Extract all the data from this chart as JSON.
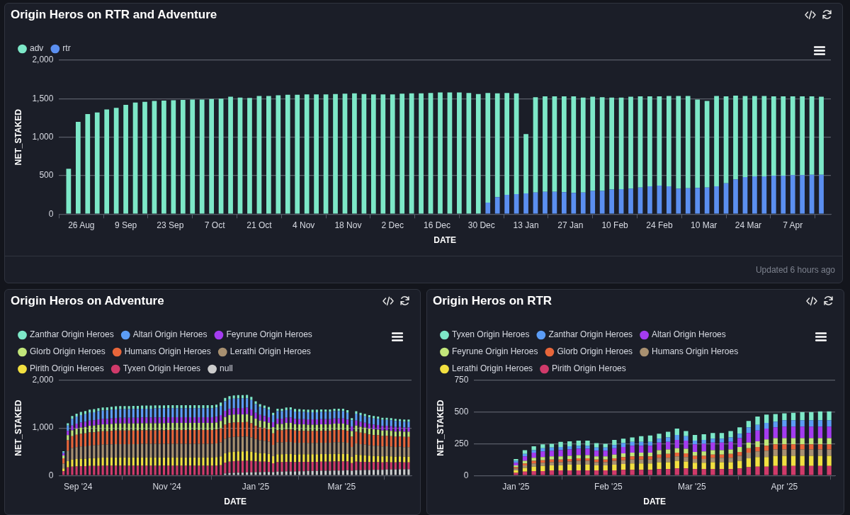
{
  "chart_data": [
    {
      "type": "bar",
      "title": "Origin Heros on RTR and Adventure",
      "xlabel": "DATE",
      "ylabel": "NET_STAKED",
      "stacked": true,
      "grid": "y",
      "legend": "top left",
      "annotations": [
        "Updated 6 hours ago"
      ],
      "xlim": [
        "2024-08-19",
        "2025-04-19"
      ],
      "xticks": [
        {
          "value": "2024-08-26",
          "label": "26 Aug"
        },
        {
          "value": "2024-09-09",
          "label": "9 Sep"
        },
        {
          "value": "2024-09-23",
          "label": "23 Sep"
        },
        {
          "value": "2024-10-07",
          "label": "7 Oct"
        },
        {
          "value": "2024-10-21",
          "label": "21 Oct"
        },
        {
          "value": "2024-11-04",
          "label": "4 Nov"
        },
        {
          "value": "2024-11-18",
          "label": "18 Nov"
        },
        {
          "value": "2024-12-02",
          "label": "2 Dec"
        },
        {
          "value": "2024-12-16",
          "label": "16 Dec"
        },
        {
          "value": "2024-12-30",
          "label": "30 Dec"
        },
        {
          "value": "2025-01-13",
          "label": "13 Jan"
        },
        {
          "value": "2025-01-27",
          "label": "27 Jan"
        },
        {
          "value": "2025-02-10",
          "label": "10 Feb"
        },
        {
          "value": "2025-02-24",
          "label": "24 Feb"
        },
        {
          "value": "2025-03-10",
          "label": "10 Mar"
        },
        {
          "value": "2025-03-24",
          "label": "24 Mar"
        },
        {
          "value": "2025-04-07",
          "label": "7 Apr"
        }
      ],
      "ylim": [
        0,
        2000
      ],
      "yticks": [
        0,
        500,
        {
          "value": 1000,
          "label": "1,000"
        },
        {
          "value": 1500,
          "label": "1,500"
        },
        {
          "value": 2000,
          "label": "2,000"
        }
      ],
      "x": [
        "2024-08-22",
        "2024-08-25",
        "2024-08-28",
        "2024-08-31",
        "2024-09-03",
        "2024-09-06",
        "2024-09-09",
        "2024-09-12",
        "2024-09-15",
        "2024-09-18",
        "2024-09-21",
        "2024-09-24",
        "2024-09-27",
        "2024-09-30",
        "2024-10-03",
        "2024-10-06",
        "2024-10-09",
        "2024-10-12",
        "2024-10-15",
        "2024-10-18",
        "2024-10-21",
        "2024-10-24",
        "2024-10-27",
        "2024-10-30",
        "2024-11-02",
        "2024-11-05",
        "2024-11-08",
        "2024-11-11",
        "2024-11-14",
        "2024-11-17",
        "2024-11-20",
        "2024-11-23",
        "2024-11-26",
        "2024-11-29",
        "2024-12-02",
        "2024-12-05",
        "2024-12-08",
        "2024-12-11",
        "2024-12-14",
        "2024-12-17",
        "2024-12-20",
        "2024-12-23",
        "2024-12-26",
        "2024-12-29",
        "2025-01-01",
        "2025-01-04",
        "2025-01-07",
        "2025-01-10",
        "2025-01-13",
        "2025-01-16",
        "2025-01-19",
        "2025-01-22",
        "2025-01-25",
        "2025-01-28",
        "2025-01-31",
        "2025-02-03",
        "2025-02-06",
        "2025-02-09",
        "2025-02-12",
        "2025-02-15",
        "2025-02-18",
        "2025-02-21",
        "2025-02-24",
        "2025-02-27",
        "2025-03-02",
        "2025-03-05",
        "2025-03-08",
        "2025-03-11",
        "2025-03-14",
        "2025-03-17",
        "2025-03-20",
        "2025-03-23",
        "2025-03-26",
        "2025-03-29",
        "2025-04-01",
        "2025-04-04",
        "2025-04-07",
        "2025-04-10",
        "2025-04-13",
        "2025-04-16"
      ],
      "series": [
        {
          "name": "rtr",
          "color": "#5b8ff0",
          "values": [
            null,
            null,
            null,
            null,
            null,
            null,
            null,
            null,
            null,
            null,
            null,
            null,
            null,
            null,
            null,
            null,
            null,
            null,
            null,
            null,
            null,
            null,
            null,
            null,
            null,
            null,
            null,
            null,
            null,
            null,
            null,
            null,
            null,
            null,
            null,
            null,
            null,
            null,
            null,
            null,
            null,
            null,
            null,
            null,
            150,
            220,
            250,
            260,
            270,
            280,
            290,
            290,
            285,
            275,
            280,
            300,
            300,
            320,
            325,
            330,
            345,
            360,
            370,
            360,
            330,
            335,
            340,
            345,
            360,
            400,
            450,
            480,
            490,
            490,
            500,
            500,
            505,
            505,
            510,
            510
          ]
        },
        {
          "name": "adv",
          "color": "#7de8c8",
          "values": [
            590,
            1200,
            1300,
            1320,
            1360,
            1380,
            1420,
            1450,
            1460,
            1470,
            1475,
            1480,
            1485,
            1490,
            1490,
            1495,
            1500,
            1525,
            1515,
            1510,
            1535,
            1535,
            1545,
            1550,
            1550,
            1555,
            1555,
            1555,
            1560,
            1565,
            1570,
            1560,
            1555,
            1555,
            1555,
            1565,
            1570,
            1570,
            1575,
            1580,
            1580,
            1580,
            1575,
            1560,
            1425,
            1350,
            1325,
            1310,
            770,
            1240,
            1240,
            1240,
            1245,
            1255,
            1235,
            1225,
            1220,
            1195,
            1190,
            1195,
            1185,
            1170,
            1160,
            1175,
            1205,
            1200,
            1150,
            1125,
            1175,
            1130,
            1090,
            1055,
            1045,
            1045,
            1030,
            1030,
            1025,
            1025,
            1020,
            1015
          ]
        }
      ]
    },
    {
      "type": "bar",
      "title": "Origin Heros on Adventure",
      "xlabel": "DATE",
      "ylabel": "NET_STAKED",
      "stacked": true,
      "grid": "y",
      "legend": "top left",
      "xlim": [
        "2024-08-19",
        "2025-04-18"
      ],
      "xticks": [
        {
          "value": "2024-09-01",
          "label": "Sep '24"
        },
        {
          "value": "2024-11-01",
          "label": "Nov '24"
        },
        {
          "value": "2025-01-01",
          "label": "Jan '25"
        },
        {
          "value": "2025-03-01",
          "label": "Mar '25"
        }
      ],
      "ylim": [
        0,
        2000
      ],
      "yticks": [
        0,
        {
          "value": 1000,
          "label": "1,000"
        },
        {
          "value": 2000,
          "label": "2,000"
        }
      ],
      "x": [
        "2024-08-22",
        "2024-08-25",
        "2024-08-28",
        "2024-08-31",
        "2024-09-03",
        "2024-09-06",
        "2024-09-09",
        "2024-09-12",
        "2024-09-15",
        "2024-09-18",
        "2024-09-21",
        "2024-09-24",
        "2024-09-27",
        "2024-09-30",
        "2024-10-03",
        "2024-10-06",
        "2024-10-09",
        "2024-10-12",
        "2024-10-15",
        "2024-10-18",
        "2024-10-21",
        "2024-10-24",
        "2024-10-27",
        "2024-10-30",
        "2024-11-02",
        "2024-11-05",
        "2024-11-08",
        "2024-11-11",
        "2024-11-14",
        "2024-11-17",
        "2024-11-20",
        "2024-11-23",
        "2024-11-26",
        "2024-11-29",
        "2024-12-02",
        "2024-12-05",
        "2024-12-08",
        "2024-12-11",
        "2024-12-14",
        "2024-12-17",
        "2024-12-20",
        "2024-12-23",
        "2024-12-26",
        "2024-12-29",
        "2025-01-01",
        "2025-01-04",
        "2025-01-07",
        "2025-01-10",
        "2025-01-13",
        "2025-01-16",
        "2025-01-19",
        "2025-01-22",
        "2025-01-25",
        "2025-01-28",
        "2025-01-31",
        "2025-02-03",
        "2025-02-06",
        "2025-02-09",
        "2025-02-12",
        "2025-02-15",
        "2025-02-18",
        "2025-02-21",
        "2025-02-24",
        "2025-02-27",
        "2025-03-02",
        "2025-03-05",
        "2025-03-08",
        "2025-03-11",
        "2025-03-14",
        "2025-03-17",
        "2025-03-20",
        "2025-03-23",
        "2025-03-26",
        "2025-03-29",
        "2025-04-01",
        "2025-04-04",
        "2025-04-07",
        "2025-04-10",
        "2025-04-13",
        "2025-04-16"
      ],
      "series": [
        {
          "name": "null",
          "color": "#cccccc",
          "values": [
            null,
            null,
            null,
            null,
            null,
            null,
            null,
            null,
            null,
            null,
            null,
            null,
            null,
            null,
            null,
            null,
            null,
            null,
            null,
            null,
            null,
            null,
            null,
            null,
            null,
            null,
            null,
            null,
            null,
            null,
            null,
            null,
            null,
            null,
            null,
            null,
            null,
            40,
            50,
            55,
            60,
            60,
            65,
            65,
            70,
            70,
            75,
            75,
            70,
            80,
            80,
            85,
            85,
            85,
            90,
            90,
            95,
            95,
            95,
            100,
            100,
            100,
            105,
            105,
            105,
            110,
            100,
            110,
            110,
            115,
            115,
            120,
            120,
            120,
            125,
            125,
            125,
            130,
            130,
            130
          ]
        },
        {
          "name": "Tyxen Origin Heroes",
          "color": "#d03a6a",
          "values": [
            90,
            170,
            185,
            190,
            195,
            195,
            200,
            200,
            200,
            205,
            205,
            205,
            205,
            205,
            205,
            205,
            205,
            205,
            205,
            205,
            205,
            205,
            205,
            205,
            205,
            205,
            205,
            205,
            205,
            205,
            205,
            205,
            205,
            205,
            205,
            205,
            215,
            230,
            240,
            245,
            245,
            245,
            245,
            240,
            230,
            220,
            215,
            210,
            185,
            200,
            200,
            200,
            200,
            195,
            195,
            195,
            190,
            190,
            190,
            190,
            190,
            190,
            190,
            190,
            190,
            185,
            160,
            180,
            175,
            170,
            165,
            160,
            160,
            155,
            155,
            150,
            150,
            150,
            145,
            145
          ]
        },
        {
          "name": "Pirith Origin Heroes",
          "color": "#f2e040",
          "values": [
            60,
            130,
            150,
            155,
            160,
            160,
            165,
            165,
            170,
            170,
            170,
            170,
            175,
            175,
            175,
            175,
            175,
            175,
            175,
            175,
            175,
            175,
            175,
            175,
            175,
            175,
            175,
            175,
            175,
            175,
            175,
            175,
            175,
            175,
            175,
            180,
            185,
            195,
            200,
            200,
            200,
            200,
            200,
            195,
            185,
            180,
            175,
            170,
            150,
            165,
            165,
            165,
            165,
            160,
            160,
            160,
            160,
            160,
            160,
            160,
            160,
            160,
            160,
            160,
            160,
            155,
            130,
            150,
            145,
            140,
            135,
            130,
            130,
            125,
            125,
            125,
            120,
            120,
            120,
            120
          ]
        },
        {
          "name": "Lerathi Origin Heroes",
          "color": "#a89070",
          "values": [
            100,
            220,
            240,
            250,
            255,
            260,
            265,
            270,
            270,
            275,
            275,
            280,
            280,
            280,
            280,
            280,
            280,
            280,
            285,
            285,
            285,
            285,
            285,
            285,
            285,
            285,
            285,
            285,
            285,
            285,
            285,
            285,
            285,
            285,
            285,
            290,
            295,
            305,
            310,
            310,
            310,
            310,
            310,
            300,
            280,
            270,
            265,
            255,
            240,
            250,
            250,
            255,
            255,
            250,
            245,
            245,
            240,
            240,
            240,
            240,
            240,
            240,
            245,
            245,
            245,
            240,
            210,
            235,
            230,
            225,
            220,
            215,
            215,
            210,
            210,
            205,
            205,
            205,
            200,
            200
          ]
        },
        {
          "name": "Humans Origin Heroes",
          "color": "#e8663a",
          "values": [
            110,
            220,
            250,
            260,
            265,
            270,
            275,
            275,
            280,
            280,
            280,
            285,
            285,
            285,
            285,
            285,
            285,
            285,
            285,
            285,
            285,
            285,
            285,
            285,
            290,
            290,
            290,
            290,
            290,
            290,
            290,
            290,
            290,
            290,
            290,
            290,
            295,
            300,
            305,
            305,
            305,
            305,
            305,
            300,
            280,
            270,
            265,
            260,
            240,
            255,
            255,
            260,
            260,
            255,
            250,
            250,
            250,
            250,
            250,
            250,
            250,
            250,
            255,
            255,
            255,
            250,
            220,
            245,
            240,
            235,
            230,
            225,
            225,
            220,
            220,
            220,
            215,
            215,
            215,
            215
          ]
        },
        {
          "name": "Glorb Origin Heroes",
          "color": "#c2e67a",
          "values": [
            60,
            110,
            125,
            130,
            135,
            135,
            140,
            140,
            145,
            145,
            145,
            145,
            150,
            150,
            150,
            150,
            150,
            150,
            150,
            150,
            150,
            150,
            150,
            150,
            150,
            150,
            150,
            150,
            150,
            150,
            150,
            150,
            150,
            150,
            150,
            150,
            155,
            160,
            165,
            165,
            165,
            165,
            165,
            160,
            150,
            145,
            140,
            140,
            130,
            135,
            135,
            140,
            140,
            135,
            135,
            135,
            135,
            135,
            135,
            135,
            135,
            135,
            135,
            135,
            135,
            130,
            115,
            130,
            125,
            125,
            120,
            120,
            115,
            115,
            115,
            115,
            110,
            110,
            110,
            110
          ]
        },
        {
          "name": "Feyrune Origin Heroes",
          "color": "#a43cf0",
          "values": [
            40,
            90,
            100,
            105,
            105,
            110,
            110,
            110,
            115,
            115,
            115,
            115,
            115,
            120,
            120,
            120,
            120,
            120,
            120,
            120,
            120,
            120,
            120,
            120,
            120,
            120,
            120,
            120,
            120,
            120,
            120,
            120,
            120,
            120,
            120,
            120,
            125,
            130,
            130,
            135,
            135,
            135,
            135,
            130,
            125,
            120,
            115,
            115,
            105,
            110,
            110,
            110,
            115,
            110,
            110,
            110,
            110,
            110,
            110,
            110,
            110,
            110,
            110,
            110,
            110,
            105,
            95,
            105,
            105,
            100,
            100,
            100,
            95,
            95,
            95,
            95,
            95,
            90,
            90,
            90
          ]
        },
        {
          "name": "Altari Origin Heroes",
          "color": "#5b9cf5",
          "values": [
            30,
            110,
            140,
            150,
            155,
            160,
            165,
            170,
            170,
            175,
            180,
            180,
            180,
            180,
            180,
            180,
            185,
            185,
            185,
            185,
            185,
            190,
            190,
            190,
            190,
            190,
            190,
            190,
            190,
            190,
            190,
            190,
            190,
            190,
            190,
            190,
            195,
            200,
            200,
            200,
            200,
            200,
            200,
            195,
            180,
            170,
            165,
            160,
            150,
            155,
            155,
            160,
            160,
            155,
            155,
            150,
            150,
            150,
            150,
            150,
            150,
            150,
            150,
            150,
            150,
            145,
            130,
            145,
            140,
            135,
            135,
            130,
            130,
            130,
            125,
            125,
            125,
            120,
            120,
            120
          ]
        },
        {
          "name": "Zanthar Origin Heroes",
          "color": "#7de8c8",
          "values": [
            20,
            50,
            60,
            60,
            65,
            65,
            65,
            65,
            65,
            65,
            65,
            65,
            65,
            65,
            65,
            65,
            65,
            65,
            65,
            65,
            65,
            65,
            65,
            65,
            65,
            65,
            65,
            65,
            65,
            65,
            65,
            65,
            65,
            65,
            65,
            65,
            70,
            70,
            70,
            70,
            70,
            70,
            70,
            70,
            60,
            55,
            55,
            55,
            50,
            55,
            55,
            55,
            55,
            55,
            55,
            55,
            55,
            55,
            55,
            55,
            55,
            55,
            55,
            55,
            55,
            55,
            45,
            50,
            50,
            50,
            50,
            50,
            50,
            45,
            45,
            45,
            45,
            45,
            45,
            45
          ]
        }
      ]
    },
    {
      "type": "bar",
      "title": "Origin Heros on RTR",
      "xlabel": "DATE",
      "ylabel": "NET_STAKED",
      "stacked": true,
      "grid": "y",
      "legend": "top left",
      "xlim": [
        "2024-12-18",
        "2025-04-18"
      ],
      "xticks": [
        {
          "value": "2025-01-01",
          "label": "Jan '25"
        },
        {
          "value": "2025-02-01",
          "label": "Feb '25"
        },
        {
          "value": "2025-03-01",
          "label": "Mar '25"
        },
        {
          "value": "2025-04-01",
          "label": "Apr '25"
        }
      ],
      "ylim": [
        0,
        750
      ],
      "yticks": [
        0,
        250,
        500,
        750
      ],
      "x": [
        "2025-01-01",
        "2025-01-04",
        "2025-01-07",
        "2025-01-10",
        "2025-01-13",
        "2025-01-16",
        "2025-01-19",
        "2025-01-22",
        "2025-01-25",
        "2025-01-28",
        "2025-01-31",
        "2025-02-03",
        "2025-02-06",
        "2025-02-09",
        "2025-02-12",
        "2025-02-15",
        "2025-02-18",
        "2025-02-21",
        "2025-02-24",
        "2025-02-27",
        "2025-03-02",
        "2025-03-05",
        "2025-03-08",
        "2025-03-11",
        "2025-03-14",
        "2025-03-17",
        "2025-03-20",
        "2025-03-23",
        "2025-03-26",
        "2025-03-29",
        "2025-04-01",
        "2025-04-04",
        "2025-04-07",
        "2025-04-10",
        "2025-04-13",
        "2025-04-16"
      ],
      "series": [
        {
          "name": "Pirith Origin Heroes",
          "color": "#d03a6a",
          "values": [
            20,
            30,
            35,
            35,
            40,
            40,
            40,
            40,
            40,
            40,
            40,
            40,
            45,
            45,
            45,
            45,
            50,
            50,
            55,
            55,
            50,
            50,
            50,
            50,
            50,
            55,
            65,
            70,
            70,
            75,
            75,
            75,
            75,
            75,
            75,
            75
          ]
        },
        {
          "name": "Lerathi Origin Heroes",
          "color": "#f2e040",
          "values": [
            20,
            30,
            35,
            40,
            40,
            40,
            45,
            45,
            45,
            40,
            40,
            45,
            45,
            50,
            50,
            50,
            55,
            55,
            60,
            55,
            50,
            50,
            55,
            55,
            55,
            60,
            70,
            75,
            75,
            80,
            80,
            80,
            80,
            80,
            80,
            80
          ]
        },
        {
          "name": "Humans Origin Heroes",
          "color": "#a89070",
          "values": [
            15,
            20,
            25,
            25,
            25,
            25,
            25,
            30,
            30,
            25,
            25,
            30,
            30,
            30,
            30,
            30,
            35,
            35,
            35,
            35,
            30,
            30,
            35,
            35,
            35,
            40,
            45,
            45,
            50,
            50,
            50,
            50,
            50,
            50,
            50,
            50
          ]
        },
        {
          "name": "Glorb Origin Heroes",
          "color": "#e8663a",
          "values": [
            10,
            15,
            20,
            20,
            20,
            20,
            20,
            20,
            20,
            20,
            20,
            20,
            25,
            25,
            25,
            25,
            25,
            30,
            30,
            30,
            25,
            25,
            25,
            25,
            30,
            30,
            35,
            35,
            40,
            40,
            40,
            40,
            40,
            40,
            40,
            40
          ]
        },
        {
          "name": "Feyrune Origin Heroes",
          "color": "#c2e67a",
          "values": [
            15,
            20,
            25,
            25,
            25,
            25,
            25,
            25,
            25,
            25,
            25,
            30,
            30,
            30,
            30,
            30,
            35,
            35,
            35,
            35,
            30,
            35,
            35,
            35,
            35,
            40,
            45,
            45,
            50,
            50,
            50,
            50,
            50,
            50,
            50,
            50
          ]
        },
        {
          "name": "Altari Origin Heroes",
          "color": "#a43cf0",
          "values": [
            20,
            35,
            40,
            45,
            45,
            50,
            50,
            50,
            50,
            45,
            45,
            50,
            50,
            55,
            55,
            55,
            60,
            60,
            65,
            65,
            60,
            60,
            60,
            60,
            60,
            70,
            75,
            85,
            85,
            85,
            90,
            90,
            90,
            90,
            90,
            90
          ]
        },
        {
          "name": "Zanthar Origin Heroes",
          "color": "#5b9cf5",
          "values": [
            15,
            20,
            20,
            25,
            25,
            25,
            25,
            25,
            25,
            25,
            25,
            25,
            30,
            30,
            30,
            30,
            30,
            35,
            40,
            35,
            30,
            30,
            30,
            30,
            35,
            35,
            45,
            45,
            45,
            45,
            50,
            50,
            50,
            50,
            50,
            50
          ]
        },
        {
          "name": "Tyxen Origin Heroes",
          "color": "#7de8c8",
          "values": [
            15,
            30,
            30,
            30,
            30,
            40,
            40,
            40,
            40,
            35,
            30,
            40,
            35,
            35,
            45,
            50,
            40,
            45,
            50,
            40,
            45,
            45,
            45,
            45,
            50,
            50,
            50,
            65,
            65,
            60,
            55,
            60,
            65,
            65,
            70,
            70
          ]
        }
      ]
    }
  ]
}
